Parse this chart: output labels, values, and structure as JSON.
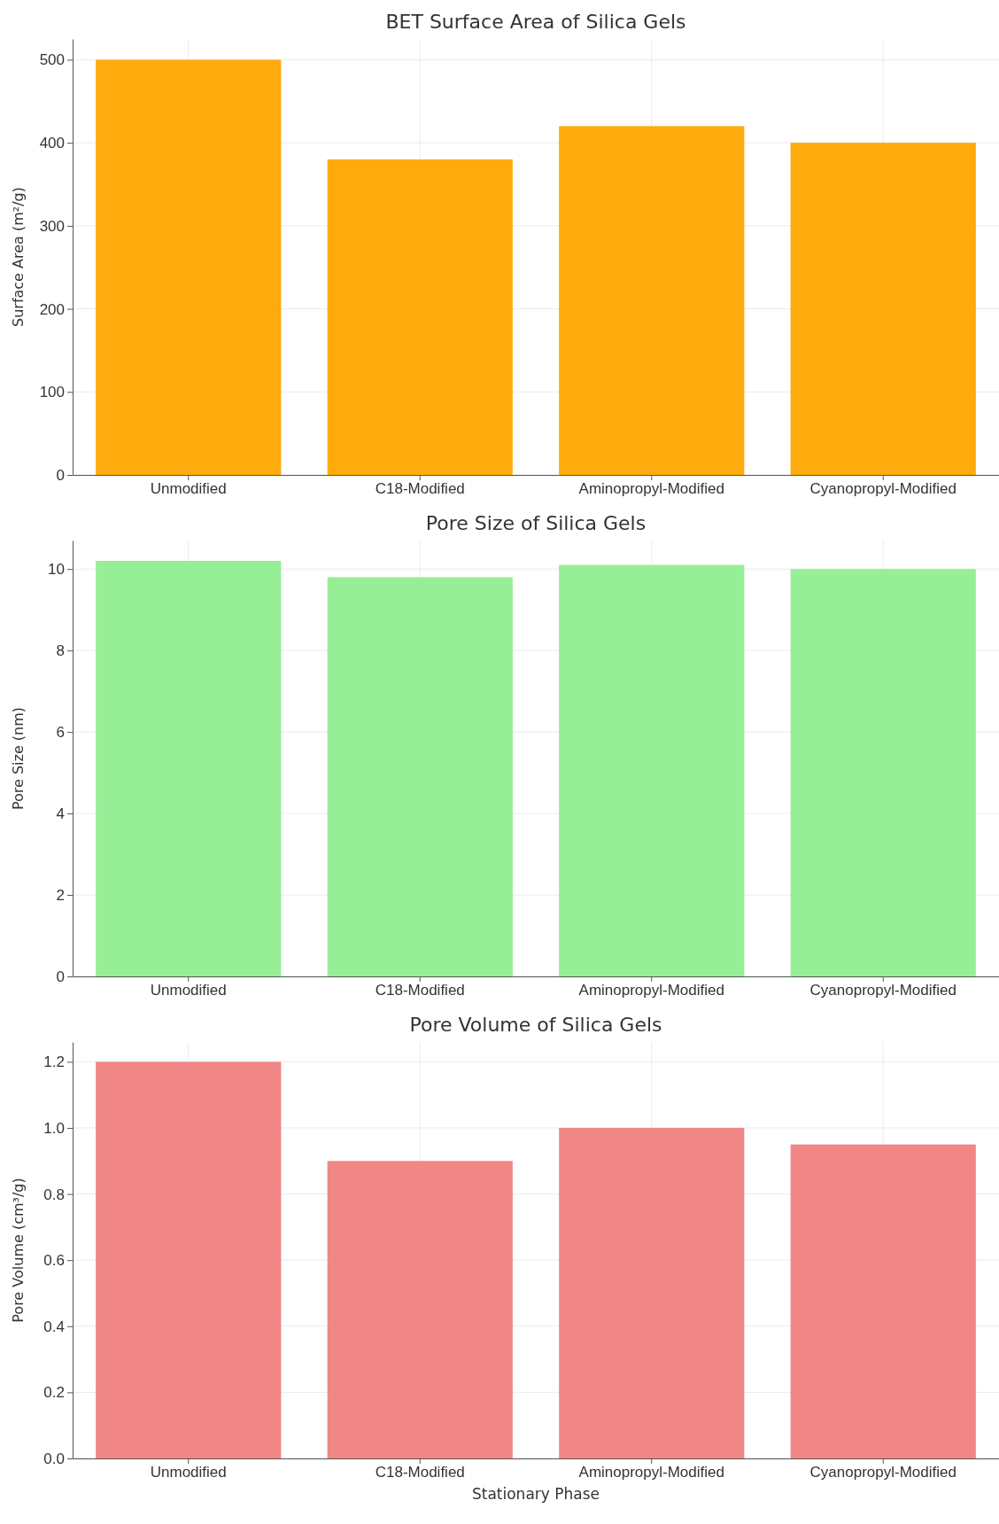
{
  "chart_data": [
    {
      "type": "bar",
      "title": "BET Surface Area of Silica Gels",
      "ylabel": "Surface Area (m²/g)",
      "categories": [
        "Unmodified",
        "C18-Modified",
        "Aminopropyl-Modified",
        "Cyanopropyl-Modified"
      ],
      "values": [
        500,
        380,
        420,
        400
      ],
      "color": "#ffa500",
      "ylim": [
        0,
        525
      ],
      "yticks": [
        0,
        100,
        200,
        300,
        400,
        500
      ],
      "grid": true
    },
    {
      "type": "bar",
      "title": "Pore Size of Silica Gels",
      "ylabel": "Pore Size (nm)",
      "categories": [
        "Unmodified",
        "C18-Modified",
        "Aminopropyl-Modified",
        "Cyanopropyl-Modified"
      ],
      "values": [
        10.2,
        9.8,
        10.1,
        10.0
      ],
      "color": "#90ee90",
      "ylim": [
        0,
        10.7
      ],
      "yticks": [
        0,
        2,
        4,
        6,
        8,
        10
      ],
      "grid": true
    },
    {
      "type": "bar",
      "title": "Pore Volume of Silica Gels",
      "xlabel": "Stationary Phase",
      "ylabel": "Pore Volume (cm³/g)",
      "categories": [
        "Unmodified",
        "C18-Modified",
        "Aminopropyl-Modified",
        "Cyanopropyl-Modified"
      ],
      "values": [
        1.2,
        0.9,
        1.0,
        0.95
      ],
      "color": "#f08080",
      "ylim": [
        0,
        1.26
      ],
      "yticks": [
        {
          "value": 0,
          "label": "0.0"
        },
        {
          "value": 0.2,
          "label": "0.2"
        },
        {
          "value": 0.4,
          "label": "0.4"
        },
        {
          "value": 0.6,
          "label": "0.6"
        },
        {
          "value": 0.8,
          "label": "0.8"
        },
        {
          "value": 1.0,
          "label": "1.0"
        },
        {
          "value": 1.2,
          "label": "1.2"
        }
      ],
      "grid": true
    }
  ]
}
